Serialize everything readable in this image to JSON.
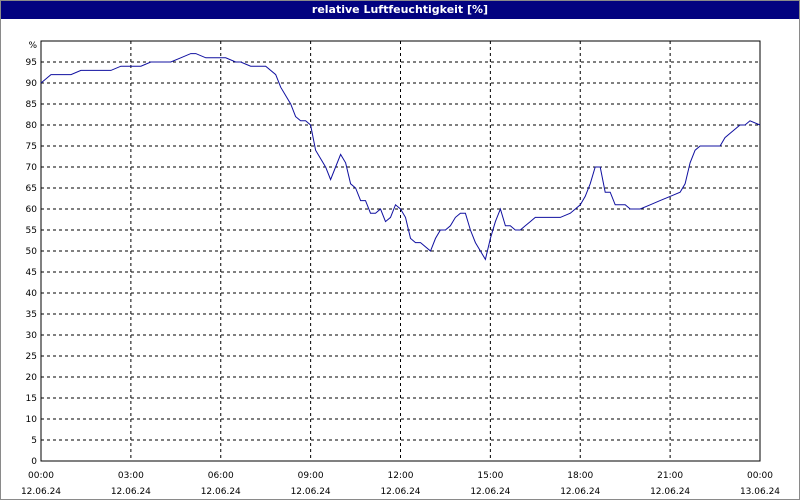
{
  "window": {
    "title": "relative Luftfeuchtigkeit [%]"
  },
  "chart_data": {
    "type": "line",
    "title": "relative Luftfeuchtigkeit [%]",
    "ylabel": "%",
    "xlabel": "",
    "ylim": [
      0,
      100
    ],
    "xlim": [
      "12.06.24 00:00",
      "13.06.24 00:00"
    ],
    "grid": true,
    "legend": "none",
    "y_ticks": [
      "0",
      "5",
      "10",
      "15",
      "20",
      "25",
      "30",
      "35",
      "40",
      "45",
      "50",
      "55",
      "60",
      "65",
      "70",
      "75",
      "80",
      "85",
      "90",
      "95"
    ],
    "x_ticks": [
      {
        "time": "00:00",
        "date": "12.06.24"
      },
      {
        "time": "03:00",
        "date": "12.06.24"
      },
      {
        "time": "06:00",
        "date": "12.06.24"
      },
      {
        "time": "09:00",
        "date": "12.06.24"
      },
      {
        "time": "12:00",
        "date": "12.06.24"
      },
      {
        "time": "15:00",
        "date": "12.06.24"
      },
      {
        "time": "18:00",
        "date": "12.06.24"
      },
      {
        "time": "21:00",
        "date": "12.06.24"
      },
      {
        "time": "00:00",
        "date": "13.06.24"
      }
    ],
    "line_color": "#1010a0",
    "series": [
      {
        "x": [
          "00:00",
          "00:20",
          "00:40",
          "01:00",
          "01:20",
          "01:40",
          "02:00",
          "02:20",
          "02:40",
          "03:00",
          "03:20",
          "03:40",
          "04:00",
          "04:20",
          "04:40",
          "05:00",
          "05:10",
          "05:30",
          "05:50",
          "06:10",
          "06:30",
          "06:40",
          "07:00",
          "07:20",
          "07:30",
          "07:50",
          "08:00",
          "08:20",
          "08:30",
          "08:40",
          "08:50",
          "09:00",
          "09:10",
          "09:20",
          "09:30",
          "09:40",
          "10:00",
          "10:10",
          "10:20",
          "10:30",
          "10:40",
          "10:50",
          "11:00",
          "11:10",
          "11:20",
          "11:30",
          "11:40",
          "11:50",
          "12:00",
          "12:10",
          "12:20",
          "12:30",
          "12:40",
          "13:00",
          "13:10",
          "13:20",
          "13:30",
          "13:40",
          "13:50",
          "14:00",
          "14:10",
          "14:20",
          "14:30",
          "14:40",
          "14:50",
          "15:00",
          "15:10",
          "15:20",
          "15:30",
          "15:40",
          "15:50",
          "16:00",
          "16:10",
          "16:20",
          "16:30",
          "16:40",
          "17:00",
          "17:20",
          "17:40",
          "18:00",
          "18:10",
          "18:20",
          "18:30",
          "18:40",
          "18:50",
          "19:00",
          "19:10",
          "19:20",
          "19:30",
          "19:40",
          "19:50",
          "20:00",
          "20:20",
          "20:40",
          "21:00",
          "21:20",
          "21:30",
          "21:40",
          "21:50",
          "22:00",
          "22:20",
          "22:40",
          "22:50",
          "23:00",
          "23:20",
          "23:30",
          "23:40",
          "24:00"
        ],
        "values": [
          90,
          92,
          92,
          92,
          93,
          93,
          93,
          93,
          94,
          94,
          94,
          95,
          95,
          95,
          96,
          97,
          97,
          96,
          96,
          96,
          95,
          95,
          94,
          94,
          94,
          92,
          89,
          85,
          82,
          81,
          81,
          80,
          74,
          72,
          70,
          67,
          73,
          71,
          66,
          65,
          62,
          62,
          59,
          59,
          60,
          57,
          58,
          61,
          60,
          58,
          53,
          52,
          52,
          50,
          53,
          55,
          55,
          56,
          58,
          59,
          59,
          55,
          52,
          50,
          48,
          53,
          57,
          60,
          56,
          56,
          55,
          55,
          56,
          57,
          58,
          58,
          58,
          58,
          59,
          61,
          63,
          66,
          70,
          70,
          64,
          64,
          61,
          61,
          61,
          60,
          60,
          60,
          61,
          62,
          63,
          64,
          66,
          71,
          74,
          75,
          75,
          75,
          77,
          78,
          80,
          80,
          81,
          80
        ]
      }
    ]
  }
}
